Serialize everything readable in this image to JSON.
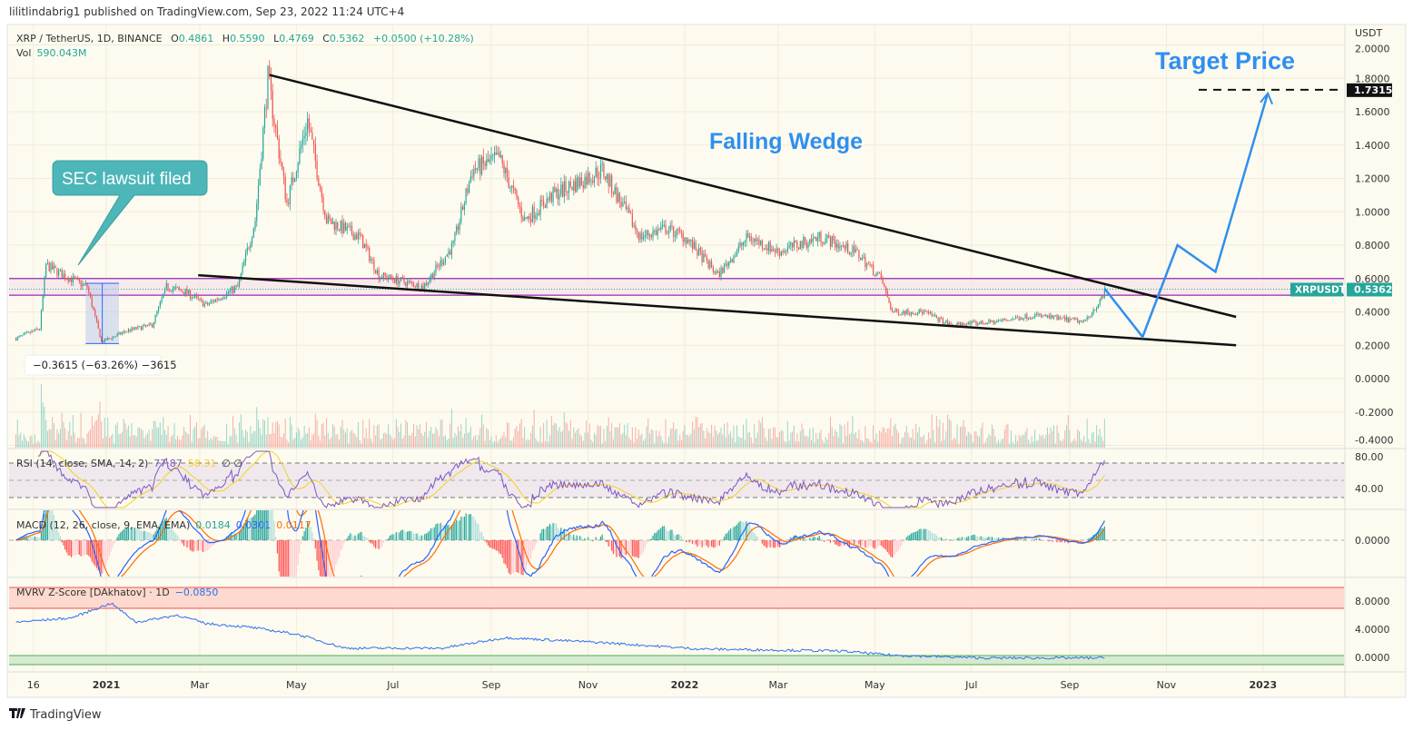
{
  "header": {
    "published": "lilitlindabrig1 published on TradingView.com, Sep 23, 2022 11:24 UTC+4"
  },
  "legend": {
    "symbol": "XRP / TetherUS, 1D, BINANCE",
    "open_label": "O",
    "open": "0.4861",
    "high_label": "H",
    "high": "0.5590",
    "low_label": "L",
    "low": "0.4769",
    "close_label": "C",
    "close": "0.5362",
    "change": "+0.0500 (+10.28%)",
    "vol_label": "Vol",
    "vol": "590.043M"
  },
  "annotations": {
    "target_price": "Target Price",
    "falling_wedge": "Falling Wedge",
    "sec_callout": "SEC lawsuit filed",
    "measure": "−0.3615 (−63.26%) −3615",
    "target_value": "1.7315",
    "symbol_tag": "XRPUSDT",
    "last_price": "0.5362"
  },
  "indicators": {
    "rsi": {
      "label": "RSI (14, close, SMA, 14, 2)",
      "value": "77.87",
      "sma": "58.31",
      "extra": "∅ ∅",
      "ticks": [
        "80.00",
        "40.00"
      ]
    },
    "macd": {
      "label": "MACD (12, 26, close, 9, EMA, EMA)",
      "hist": "0.0184",
      "macd": "0.0301",
      "signal": "0.0117",
      "ticks": [
        "0.0000"
      ]
    },
    "mvrv": {
      "label": "MVRV Z-Score [DAkhatov] · 1D",
      "value": "−0.0850",
      "ticks": [
        "8.0000",
        "4.0000",
        "0.0000"
      ]
    }
  },
  "footer": {
    "brand": "TradingView"
  },
  "colors": {
    "up": "#26a69a",
    "down": "#ef5350",
    "accent_blue": "#2f8ff0",
    "callout": "#4db6b9",
    "purple": "#9c27b0",
    "background": "#fdfbef"
  },
  "chart_data": {
    "type": "candlestick",
    "title": "XRP / TetherUS, 1D, BINANCE",
    "y_unit": "USDT",
    "ylim": [
      -0.4,
      2.0
    ],
    "y_ticks": [
      "2.0000",
      "1.8000",
      "1.6000",
      "1.4000",
      "1.2000",
      "1.0000",
      "0.8000",
      "0.6000",
      "0.4000",
      "0.2000",
      "0.0000",
      "-0.2000",
      "-0.4000"
    ],
    "x_ticks": [
      "16",
      "2021",
      "Mar",
      "May",
      "Jul",
      "Sep",
      "Nov",
      "2022",
      "Mar",
      "May",
      "Jul",
      "Sep",
      "Nov",
      "2023"
    ],
    "grid": true,
    "approx_close_path": [
      [
        "2020-11-05",
        0.24
      ],
      [
        "2020-11-20",
        0.3
      ],
      [
        "2020-11-24",
        0.68
      ],
      [
        "2020-12-05",
        0.62
      ],
      [
        "2020-12-20",
        0.55
      ],
      [
        "2020-12-29",
        0.22
      ],
      [
        "2021-01-15",
        0.29
      ],
      [
        "2021-01-30",
        0.32
      ],
      [
        "2021-02-08",
        0.55
      ],
      [
        "2021-02-20",
        0.52
      ],
      [
        "2021-03-05",
        0.44
      ],
      [
        "2021-03-25",
        0.55
      ],
      [
        "2021-04-05",
        0.95
      ],
      [
        "2021-04-13",
        1.8
      ],
      [
        "2021-04-25",
        1.05
      ],
      [
        "2021-05-08",
        1.55
      ],
      [
        "2021-05-20",
        0.95
      ],
      [
        "2021-06-10",
        0.85
      ],
      [
        "2021-06-22",
        0.62
      ],
      [
        "2021-07-20",
        0.55
      ],
      [
        "2021-08-08",
        0.8
      ],
      [
        "2021-08-20",
        1.25
      ],
      [
        "2021-09-06",
        1.32
      ],
      [
        "2021-09-22",
        0.95
      ],
      [
        "2021-10-10",
        1.1
      ],
      [
        "2021-11-10",
        1.25
      ],
      [
        "2021-12-04",
        0.85
      ],
      [
        "2021-12-20",
        0.9
      ],
      [
        "2022-01-01",
        0.85
      ],
      [
        "2022-01-22",
        0.62
      ],
      [
        "2022-02-10",
        0.85
      ],
      [
        "2022-03-01",
        0.76
      ],
      [
        "2022-03-28",
        0.85
      ],
      [
        "2022-04-20",
        0.75
      ],
      [
        "2022-05-05",
        0.6
      ],
      [
        "2022-05-12",
        0.4
      ],
      [
        "2022-06-01",
        0.4
      ],
      [
        "2022-06-18",
        0.32
      ],
      [
        "2022-07-15",
        0.34
      ],
      [
        "2022-08-10",
        0.38
      ],
      [
        "2022-09-10",
        0.34
      ],
      [
        "2022-09-22",
        0.4861
      ],
      [
        "2022-09-23",
        0.5362
      ]
    ],
    "last_candle": {
      "date": "2022-09-23",
      "open": 0.4861,
      "high": 0.559,
      "low": 0.4769,
      "close": 0.5362
    },
    "horizontal_zone": [
      0.5,
      0.6
    ],
    "target_price": 1.7315,
    "wedge_upper": [
      [
        "2021-04-14",
        1.82
      ],
      [
        "2022-12-15",
        0.37
      ]
    ],
    "wedge_lower": [
      [
        "2021-02-28",
        0.62
      ],
      [
        "2022-12-15",
        0.2
      ]
    ],
    "projection_path": [
      [
        "2022-09-23",
        0.54
      ],
      [
        "2022-10-17",
        0.25
      ],
      [
        "2022-11-08",
        0.8
      ],
      [
        "2022-12-02",
        0.64
      ],
      [
        "2023-01-04",
        1.71
      ]
    ],
    "measure": {
      "from": "2020-12-19",
      "to": "2021-01-09",
      "change": -0.3615,
      "change_pct": -63.26
    },
    "mvrv_path": [
      [
        "2020-11-05",
        5.0
      ],
      [
        "2020-12-10",
        5.6
      ],
      [
        "2021-01-04",
        7.7
      ],
      [
        "2021-01-20",
        5.0
      ],
      [
        "2021-02-15",
        6.0
      ],
      [
        "2021-03-05",
        4.8
      ],
      [
        "2021-04-01",
        4.3
      ],
      [
        "2021-05-01",
        3.3
      ],
      [
        "2021-06-01",
        1.3
      ],
      [
        "2021-08-01",
        1.3
      ],
      [
        "2021-09-10",
        2.8
      ],
      [
        "2021-11-10",
        2.1
      ],
      [
        "2022-01-10",
        1.2
      ],
      [
        "2022-04-10",
        0.9
      ],
      [
        "2022-05-12",
        0.3
      ],
      [
        "2022-07-10",
        -0.1
      ],
      [
        "2022-09-23",
        -0.085
      ]
    ]
  }
}
